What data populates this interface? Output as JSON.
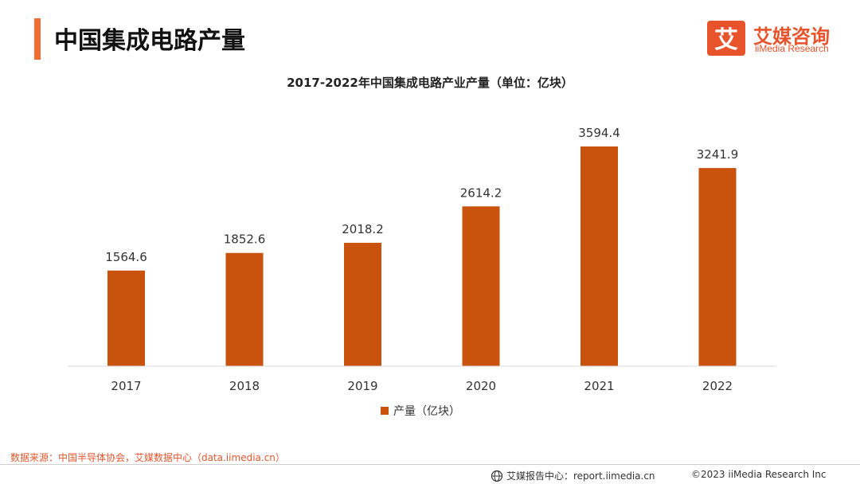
{
  "header": {
    "title": "中国集成电路产量"
  },
  "logo": {
    "cn": "艾媒咨询",
    "en": "iiMedia Research",
    "mark": "艾"
  },
  "colors": {
    "accent": "#f26b32",
    "bar": "#c9520d",
    "brand": "#e8532b"
  },
  "chart_data": {
    "type": "bar",
    "title": "2017-2022年中国集成电路产业产量（单位：亿块）",
    "categories": [
      "2017",
      "2018",
      "2019",
      "2020",
      "2021",
      "2022"
    ],
    "series": [
      {
        "name": "产量（亿块）",
        "values": [
          1564.6,
          1852.6,
          2018.2,
          2614.2,
          3594.4,
          3241.9
        ],
        "labels": [
          "1564.6",
          "1852.6",
          "2018.2",
          "2614.2",
          "3594.4",
          "3241.9"
        ]
      }
    ],
    "xlabel": "",
    "ylabel": "",
    "ylim": [
      0,
      3594.4
    ],
    "grid": false,
    "legend": "bottom"
  },
  "footer": {
    "source": "数据来源：中国半导体协会，艾媒数据中心（data.iimedia.cn）",
    "report": "艾媒报告中心：report.iimedia.cn",
    "copyright": "©2023  iiMedia Research  Inc"
  }
}
